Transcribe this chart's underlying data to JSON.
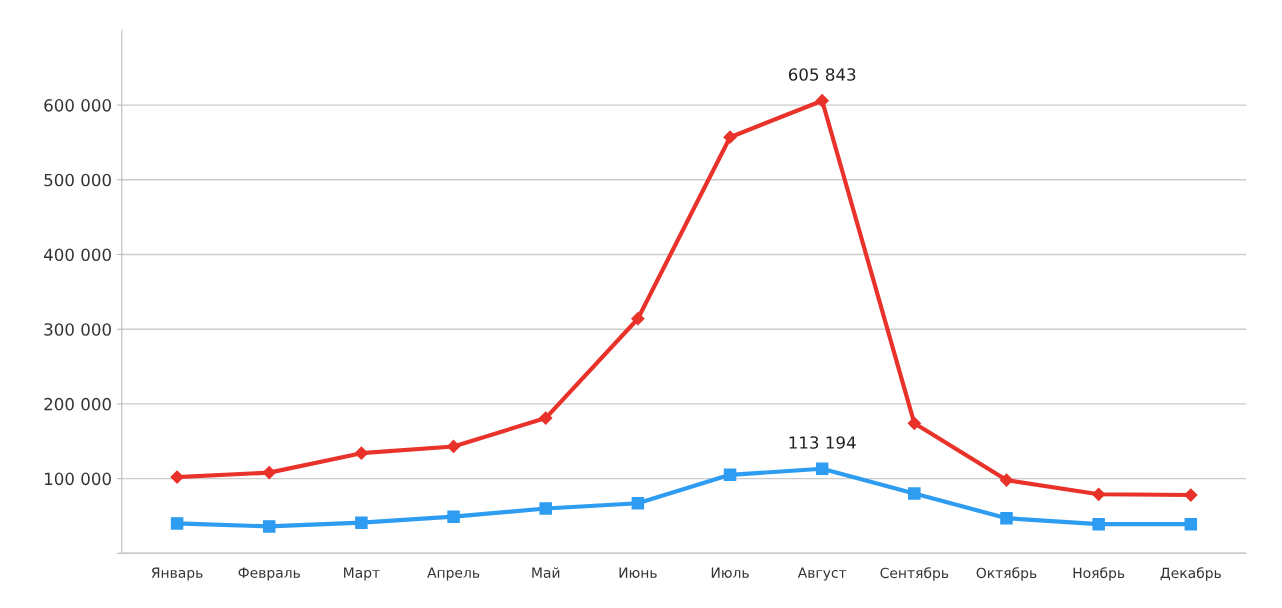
{
  "chart_data": {
    "type": "line",
    "categories": [
      "Январь",
      "Февраль",
      "Март",
      "Апрель",
      "Май",
      "Июнь",
      "Июль",
      "Август",
      "Сентябрь",
      "Октябрь",
      "Ноябрь",
      "Декабрь"
    ],
    "series": [
      {
        "color": "#e8322a",
        "marker": "diamond",
        "values": [
          102000,
          108000,
          134000,
          143000,
          181000,
          314000,
          557000,
          605843,
          174000,
          98000,
          79000,
          78000
        ],
        "value_labels": [
          null,
          null,
          null,
          null,
          null,
          null,
          null,
          "605 843",
          null,
          null,
          null,
          null
        ]
      },
      {
        "color": "#2e9cf0",
        "marker": "square",
        "values": [
          40000,
          36000,
          41000,
          49000,
          60000,
          67000,
          105000,
          113194,
          80000,
          47000,
          39000,
          39000
        ],
        "value_labels": [
          null,
          null,
          null,
          null,
          null,
          null,
          null,
          "113 194",
          null,
          null,
          null,
          null
        ]
      }
    ],
    "ylim": [
      0,
      700000
    ],
    "yticks": [
      {
        "value": 0,
        "label": null
      },
      {
        "value": 100000,
        "label": "100 000"
      },
      {
        "value": 200000,
        "label": "200 000"
      },
      {
        "value": 300000,
        "label": "300 000"
      },
      {
        "value": 400000,
        "label": "400 000"
      },
      {
        "value": 500000,
        "label": "500 000"
      },
      {
        "value": 600000,
        "label": "600 000"
      }
    ],
    "grid": "y",
    "line_style": "solid"
  }
}
